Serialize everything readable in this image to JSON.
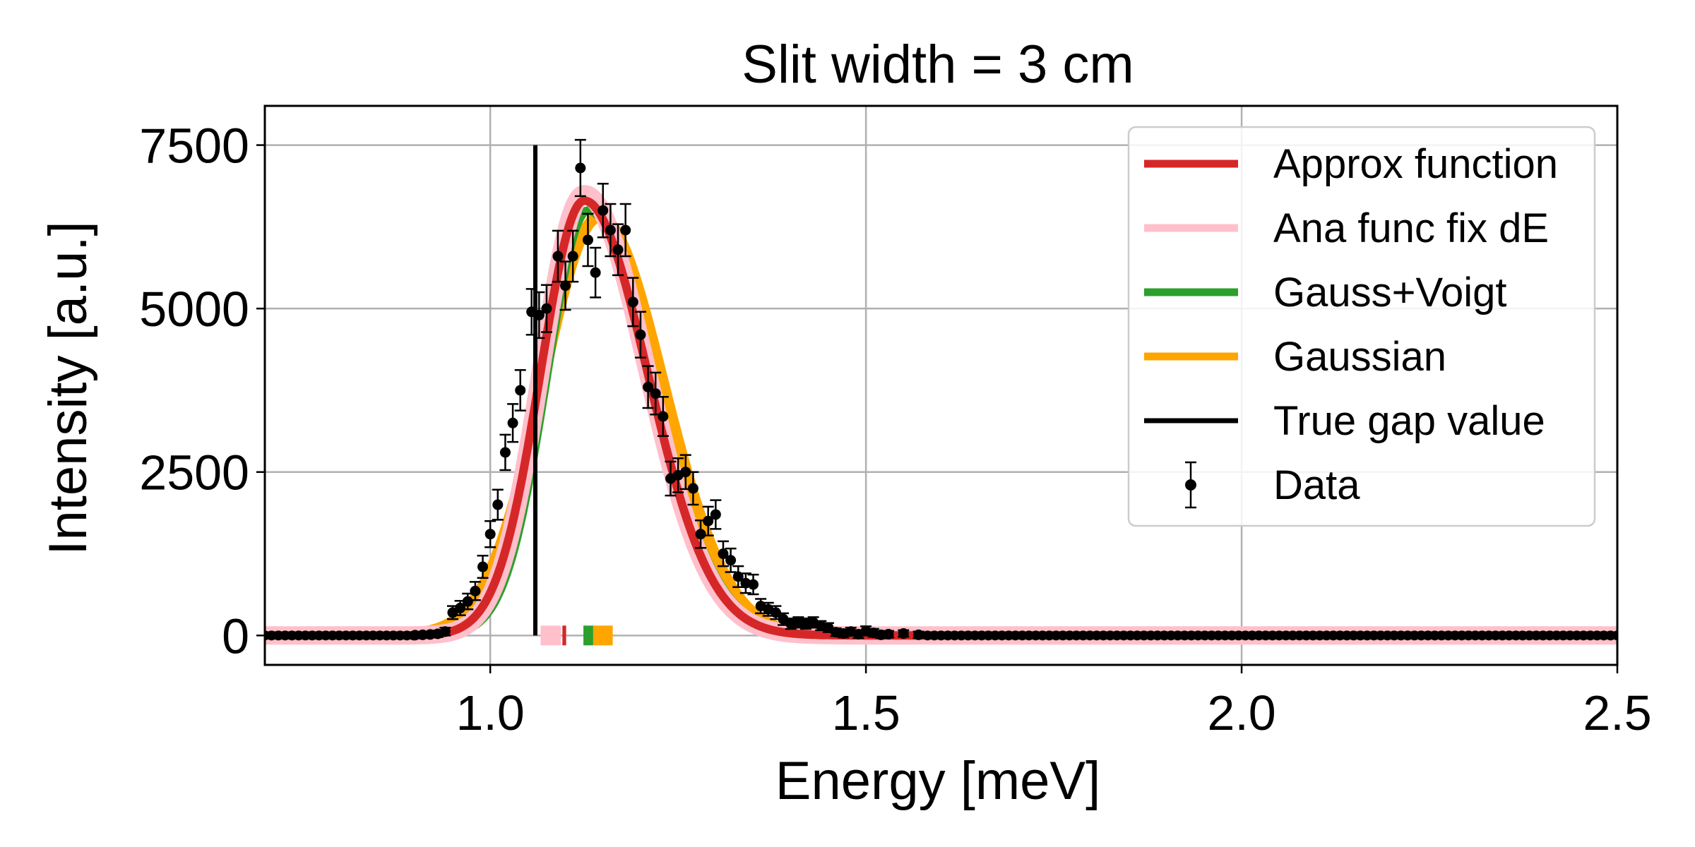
{
  "chart_data": {
    "type": "line",
    "title": "Slit width = 3 cm",
    "xlabel": "Energy [meV]",
    "ylabel": "Intensity [a.u.]",
    "xlim": [
      0.7,
      2.5
    ],
    "ylim": [
      -450,
      8100
    ],
    "xticks": [
      1.0,
      1.5,
      2.0,
      2.5
    ],
    "xtick_labels": [
      "1.0",
      "1.5",
      "2.0",
      "2.5"
    ],
    "yticks": [
      0,
      2500,
      5000,
      7500
    ],
    "ytick_labels": [
      "0",
      "2500",
      "5000",
      "7500"
    ],
    "grid": true,
    "legend_position": "top-right",
    "legend": [
      {
        "label": "Approx function",
        "kind": "line",
        "color": "#d62728"
      },
      {
        "label": "Ana func fix dE",
        "kind": "line",
        "color": "#ffc0cb"
      },
      {
        "label": "Gauss+Voigt",
        "kind": "line",
        "color": "#2ca02c"
      },
      {
        "label": "Gaussian",
        "kind": "line",
        "color": "#ffa500"
      },
      {
        "label": "True gap value",
        "kind": "line",
        "color": "#000000"
      },
      {
        "label": "Data",
        "kind": "errorbar",
        "color": "#000000"
      }
    ],
    "curves": [
      {
        "name": "Gaussian",
        "color": "#ffa500",
        "width": 16,
        "peak": 6400,
        "center": 1.145,
        "sigma_left": 0.075,
        "sigma_right": 0.085,
        "tail": 0,
        "tail_scale": 0.1
      },
      {
        "name": "Gauss+Voigt",
        "color": "#2ca02c",
        "width": 12,
        "peak": 6500,
        "center": 1.13,
        "sigma_left": 0.055,
        "sigma_right": 0.085,
        "tail": 60,
        "tail_scale": 0.18
      },
      {
        "name": "Ana func fix dE",
        "color": "#ffc0cb",
        "width": 26,
        "peak": 6750,
        "center": 1.125,
        "sigma_left": 0.057,
        "sigma_right": 0.083,
        "tail": 30,
        "tail_scale": 0.12
      },
      {
        "name": "Approx function",
        "color": "#d62728",
        "width": 12,
        "peak": 6650,
        "center": 1.125,
        "sigma_left": 0.058,
        "sigma_right": 0.084,
        "tail": 30,
        "tail_scale": 0.12
      }
    ],
    "true_gap": {
      "x": 1.06,
      "y0": 0,
      "y1": 7500,
      "color": "#000000"
    },
    "gap_markers": [
      {
        "name": "Ana func fix dE",
        "color": "#ffc0cb",
        "x0": 1.067,
        "x1": 1.094
      },
      {
        "name": "Approx function",
        "color": "#d62728",
        "x0": 1.096,
        "x1": 1.101
      },
      {
        "name": "Gauss+Voigt",
        "color": "#2ca02c",
        "x0": 1.124,
        "x1": 1.137
      },
      {
        "name": "Gaussian",
        "color": "#ffa500",
        "x0": 1.137,
        "x1": 1.163
      }
    ],
    "data_points": [
      {
        "x": 0.9,
        "y": 5,
        "err": 40
      },
      {
        "x": 0.91,
        "y": 10,
        "err": 40
      },
      {
        "x": 0.92,
        "y": 15,
        "err": 40
      },
      {
        "x": 0.93,
        "y": 25,
        "err": 50
      },
      {
        "x": 0.94,
        "y": 60,
        "err": 60
      },
      {
        "x": 0.95,
        "y": 350,
        "err": 100
      },
      {
        "x": 0.96,
        "y": 420,
        "err": 110
      },
      {
        "x": 0.97,
        "y": 520,
        "err": 120
      },
      {
        "x": 0.98,
        "y": 680,
        "err": 140
      },
      {
        "x": 0.99,
        "y": 1050,
        "err": 170
      },
      {
        "x": 1.0,
        "y": 1550,
        "err": 200
      },
      {
        "x": 1.01,
        "y": 2000,
        "err": 230
      },
      {
        "x": 1.02,
        "y": 2800,
        "err": 270
      },
      {
        "x": 1.03,
        "y": 3250,
        "err": 290
      },
      {
        "x": 1.04,
        "y": 3750,
        "err": 310
      },
      {
        "x": 1.055,
        "y": 4950,
        "err": 350
      },
      {
        "x": 1.065,
        "y": 4900,
        "err": 350
      },
      {
        "x": 1.075,
        "y": 5000,
        "err": 360
      },
      {
        "x": 1.09,
        "y": 5800,
        "err": 390
      },
      {
        "x": 1.1,
        "y": 5350,
        "err": 370
      },
      {
        "x": 1.11,
        "y": 5800,
        "err": 390
      },
      {
        "x": 1.12,
        "y": 7150,
        "err": 430
      },
      {
        "x": 1.13,
        "y": 6050,
        "err": 400
      },
      {
        "x": 1.14,
        "y": 5550,
        "err": 380
      },
      {
        "x": 1.15,
        "y": 6500,
        "err": 410
      },
      {
        "x": 1.16,
        "y": 6200,
        "err": 400
      },
      {
        "x": 1.17,
        "y": 5900,
        "err": 390
      },
      {
        "x": 1.18,
        "y": 6200,
        "err": 400
      },
      {
        "x": 1.19,
        "y": 5100,
        "err": 370
      },
      {
        "x": 1.2,
        "y": 4600,
        "err": 350
      },
      {
        "x": 1.21,
        "y": 3800,
        "err": 320
      },
      {
        "x": 1.22,
        "y": 3700,
        "err": 320
      },
      {
        "x": 1.23,
        "y": 3350,
        "err": 300
      },
      {
        "x": 1.24,
        "y": 2400,
        "err": 260
      },
      {
        "x": 1.25,
        "y": 2450,
        "err": 260
      },
      {
        "x": 1.26,
        "y": 2500,
        "err": 260
      },
      {
        "x": 1.27,
        "y": 2250,
        "err": 250
      },
      {
        "x": 1.28,
        "y": 1550,
        "err": 210
      },
      {
        "x": 1.29,
        "y": 1750,
        "err": 220
      },
      {
        "x": 1.3,
        "y": 1850,
        "err": 220
      },
      {
        "x": 1.31,
        "y": 1250,
        "err": 190
      },
      {
        "x": 1.32,
        "y": 1150,
        "err": 180
      },
      {
        "x": 1.33,
        "y": 900,
        "err": 160
      },
      {
        "x": 1.34,
        "y": 800,
        "err": 150
      },
      {
        "x": 1.35,
        "y": 780,
        "err": 150
      },
      {
        "x": 1.36,
        "y": 450,
        "err": 110
      },
      {
        "x": 1.37,
        "y": 400,
        "err": 100
      },
      {
        "x": 1.38,
        "y": 350,
        "err": 100
      },
      {
        "x": 1.39,
        "y": 250,
        "err": 90
      },
      {
        "x": 1.4,
        "y": 180,
        "err": 80
      },
      {
        "x": 1.41,
        "y": 200,
        "err": 80
      },
      {
        "x": 1.42,
        "y": 180,
        "err": 80
      },
      {
        "x": 1.43,
        "y": 200,
        "err": 80
      },
      {
        "x": 1.44,
        "y": 150,
        "err": 70
      },
      {
        "x": 1.45,
        "y": 120,
        "err": 70
      },
      {
        "x": 1.46,
        "y": 50,
        "err": 60
      },
      {
        "x": 1.47,
        "y": 30,
        "err": 60
      },
      {
        "x": 1.48,
        "y": 60,
        "err": 60
      },
      {
        "x": 1.49,
        "y": 20,
        "err": 60
      },
      {
        "x": 1.5,
        "y": 70,
        "err": 70
      },
      {
        "x": 1.51,
        "y": 40,
        "err": 60
      },
      {
        "x": 1.52,
        "y": 10,
        "err": 50
      },
      {
        "x": 1.53,
        "y": 20,
        "err": 50
      },
      {
        "x": 1.55,
        "y": 30,
        "err": 50
      },
      {
        "x": 1.57,
        "y": 10,
        "err": 50
      }
    ],
    "baseline_markers": {
      "y": 0,
      "x_start": 0.7,
      "x_end": 2.5,
      "step": 0.009,
      "skip_from": 0.9,
      "skip_to": 1.58
    }
  }
}
